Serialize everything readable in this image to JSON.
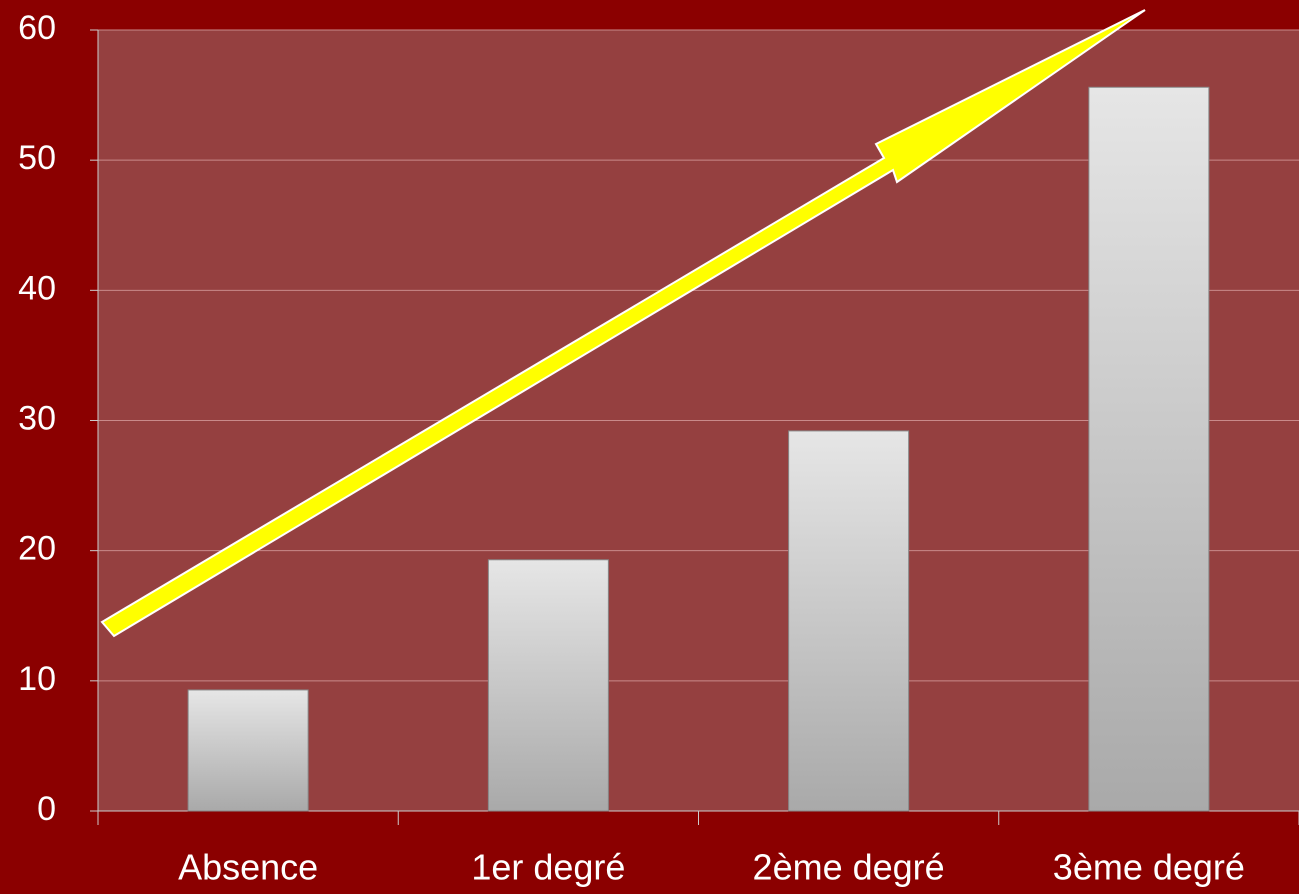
{
  "chart_data": {
    "type": "bar",
    "categories": [
      "Absence",
      "1er degré",
      "2ème degré",
      "3ème degré"
    ],
    "values": [
      9.3,
      19.3,
      29.2,
      55.6
    ],
    "ylim": [
      0,
      60
    ],
    "yticks": [
      0,
      10,
      20,
      30,
      40,
      50,
      60
    ],
    "grid": true
  }
}
